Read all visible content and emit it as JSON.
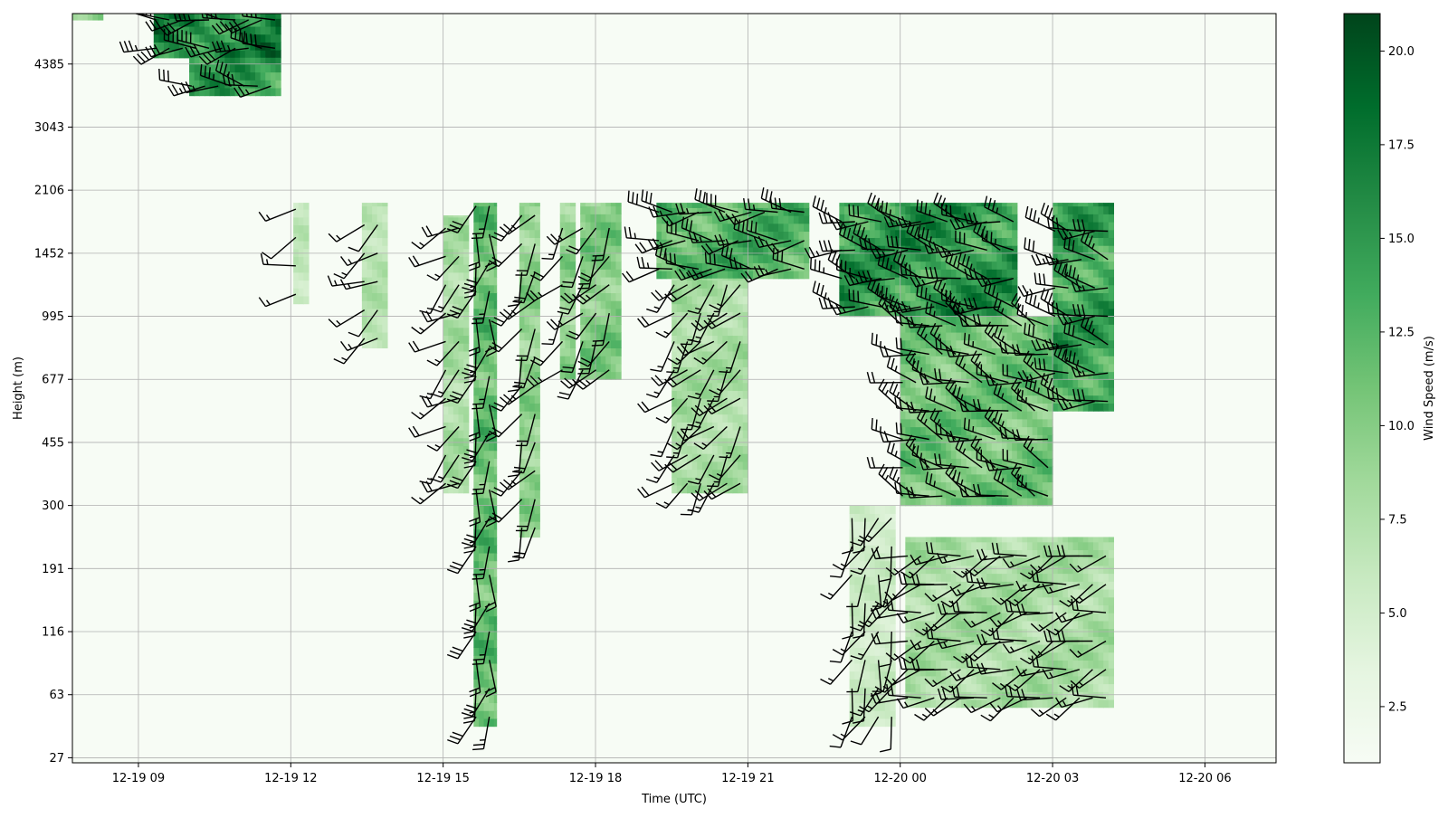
{
  "chart_data": {
    "type": "heatmap",
    "title": "",
    "xlabel": "Time (UTC)",
    "ylabel": "Height (m)",
    "colorbar_label": "Wind Speed (m/s)",
    "colormap": "Greens",
    "colormap_stops": [
      "#f7fcf5",
      "#e5f5e0",
      "#c7e9c0",
      "#a1d99b",
      "#74c476",
      "#41ab5d",
      "#238b45",
      "#006d2c",
      "#00441b"
    ],
    "x_ticks": [
      "12-19 09",
      "12-19 12",
      "12-19 15",
      "12-19 18",
      "12-19 21",
      "12-20 00",
      "12-20 03",
      "12-20 06"
    ],
    "x_tick_hours": [
      9,
      12,
      15,
      18,
      21,
      24,
      27,
      30
    ],
    "xlim_hours": [
      7.7,
      31.4
    ],
    "y_ticks": [
      "27",
      "63",
      "116",
      "191",
      "300",
      "455",
      "677",
      "995",
      "1452",
      "2106",
      "3043",
      "4385"
    ],
    "y_tick_values": [
      27,
      63,
      116,
      191,
      300,
      455,
      677,
      995,
      1452,
      2106,
      3043,
      4385
    ],
    "y_top_index": 11.8,
    "colorbar_ticks": [
      "2.5",
      "5.0",
      "7.5",
      "10.0",
      "12.5",
      "15.0",
      "17.5",
      "20.0"
    ],
    "colorbar_tick_values": [
      2.5,
      5.0,
      7.5,
      10.0,
      12.5,
      15.0,
      17.5,
      20.0
    ],
    "clim": [
      1.0,
      21.0
    ],
    "grid": true,
    "overlay": "wind barbs",
    "wind_regions": [
      {
        "t": [
          7.7,
          8.3
        ],
        "h": [
          11.7,
          11.8
        ],
        "speed": 14,
        "dir": 270
      },
      {
        "t": [
          9.3,
          11.8
        ],
        "h": [
          11.1,
          11.8
        ],
        "speed": 21,
        "dir": 265
      },
      {
        "t": [
          10.0,
          11.8
        ],
        "h": [
          10.5,
          11.1
        ],
        "speed": 18,
        "dir": 275
      },
      {
        "t": [
          12.05,
          12.35
        ],
        "h": [
          7.2,
          8.8
        ],
        "speed": 8,
        "dir": 250
      },
      {
        "t": [
          13.4,
          13.9
        ],
        "h": [
          6.5,
          8.8
        ],
        "speed": 9,
        "dir": 240
      },
      {
        "t": [
          15.0,
          15.5
        ],
        "h": [
          4.2,
          8.6
        ],
        "speed": 10,
        "dir": 230
      },
      {
        "t": [
          15.6,
          16.05
        ],
        "h": [
          0.5,
          8.8
        ],
        "speed": 15,
        "dir": 190
      },
      {
        "t": [
          16.5,
          16.9
        ],
        "h": [
          3.5,
          8.8
        ],
        "speed": 12,
        "dir": 210
      },
      {
        "t": [
          17.3,
          17.6
        ],
        "h": [
          6.0,
          8.8
        ],
        "speed": 12,
        "dir": 220
      },
      {
        "t": [
          17.7,
          18.5
        ],
        "h": [
          6.0,
          8.8
        ],
        "speed": 13,
        "dir": 215
      },
      {
        "t": [
          19.2,
          22.2
        ],
        "h": [
          7.6,
          8.8
        ],
        "speed": 16,
        "dir": 270
      },
      {
        "t": [
          19.5,
          21.0
        ],
        "h": [
          4.2,
          7.6
        ],
        "speed": 10,
        "dir": 220
      },
      {
        "t": [
          22.8,
          26.3
        ],
        "h": [
          7.0,
          8.8
        ],
        "speed": 19,
        "dir": 280
      },
      {
        "t": [
          24.0,
          27.0
        ],
        "h": [
          4.0,
          7.0
        ],
        "speed": 14,
        "dir": 290
      },
      {
        "t": [
          27.0,
          28.2
        ],
        "h": [
          5.5,
          8.8
        ],
        "speed": 18,
        "dir": 280
      },
      {
        "t": [
          24.1,
          28.2
        ],
        "h": [
          0.8,
          3.5
        ],
        "speed": 10,
        "dir": 250
      },
      {
        "t": [
          23.0,
          23.9
        ],
        "h": [
          0.5,
          4.0
        ],
        "speed": 7,
        "dir": 200
      }
    ]
  }
}
